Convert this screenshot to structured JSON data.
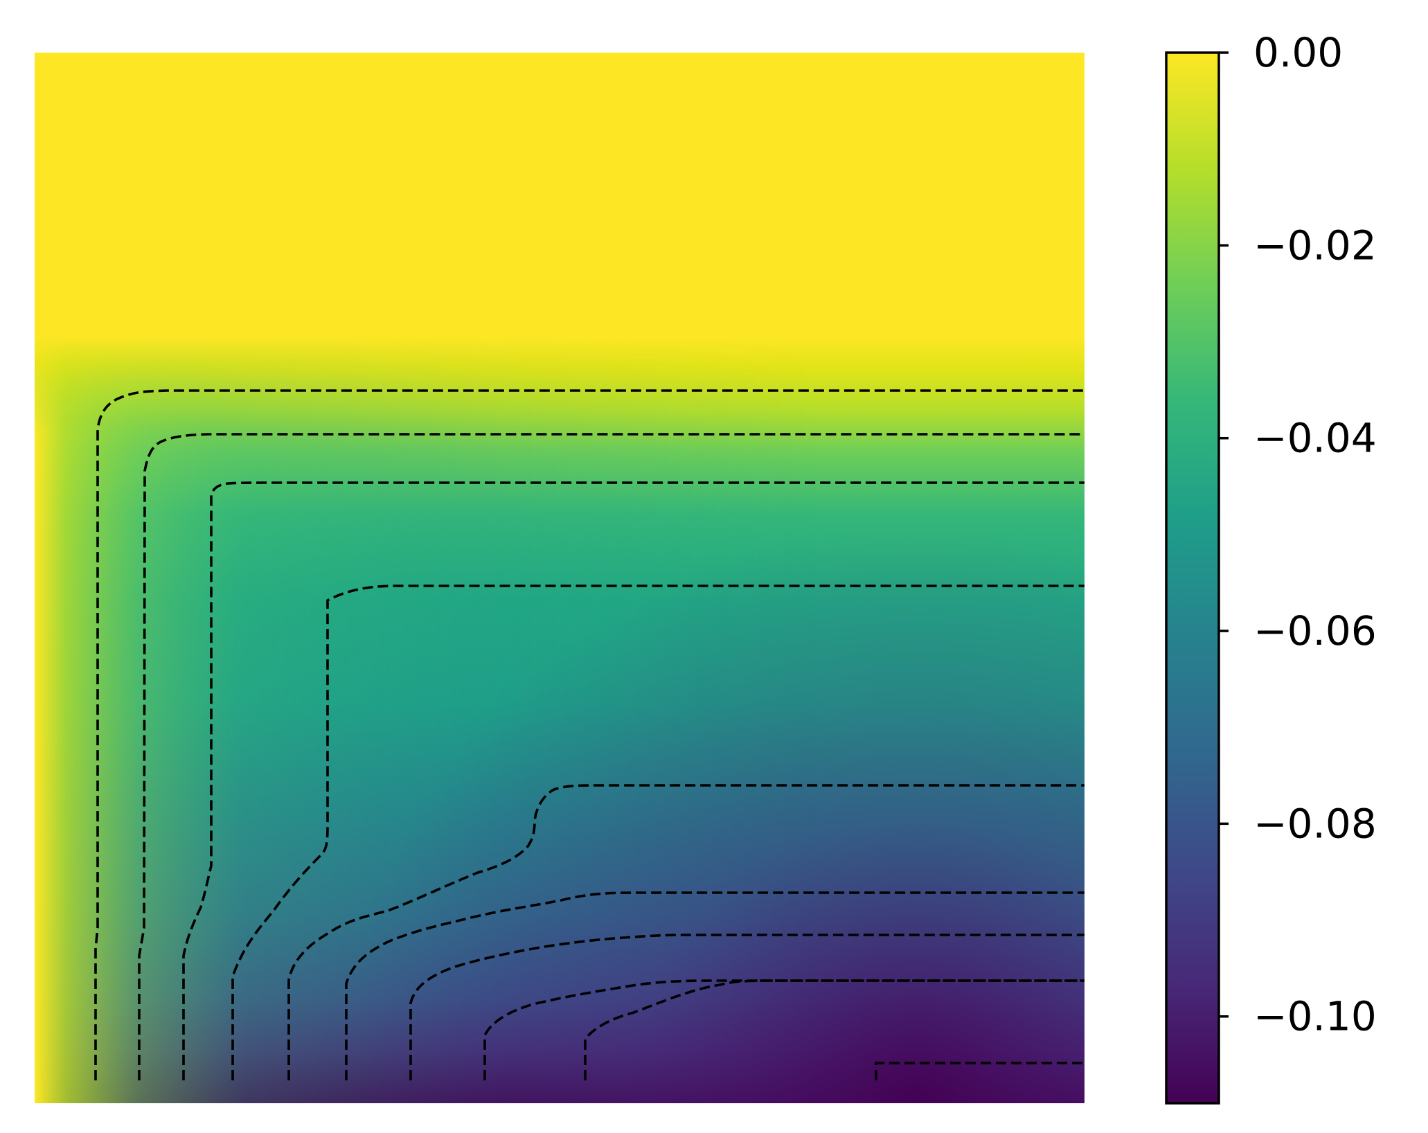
{
  "chart_data": {
    "type": "heatmap",
    "title": "",
    "xlabel": "",
    "ylabel": "",
    "axes_visible": false,
    "colormap": "viridis",
    "colormap_stops": [
      "#440154",
      "#482878",
      "#3e4989",
      "#31688e",
      "#26828e",
      "#1f9e89",
      "#35b779",
      "#6ece58",
      "#b5de2b",
      "#fde725"
    ],
    "colorbar": {
      "position": "right",
      "range": [
        -0.109,
        0.0
      ],
      "ticks": [
        0.0,
        -0.02,
        -0.04,
        -0.06,
        -0.08,
        -0.1
      ],
      "tick_labels": [
        "0.00",
        "−0.02",
        "−0.04",
        "−0.06",
        "−0.08",
        "−0.10"
      ]
    },
    "contours": {
      "style": "dashed",
      "color": "#000000",
      "count": 11
    },
    "field_description": "zero in the upper region and along the left edge, decreasing toward a minimum of about -0.109 near the lower right"
  }
}
